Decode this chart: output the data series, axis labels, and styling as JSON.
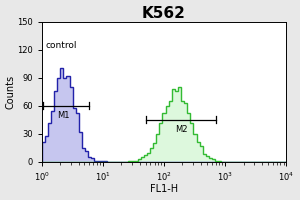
{
  "title": "K562",
  "xlabel": "FL1-H",
  "ylabel": "Counts",
  "ylim": [
    0,
    150
  ],
  "yticks": [
    0,
    30,
    60,
    90,
    120,
    150
  ],
  "xtick_labels": [
    "10$^0$",
    "10$^1$",
    "10$^2$",
    "10$^3$",
    "10$^4$"
  ],
  "control_label": "control",
  "m1_label": "M1",
  "m2_label": "M2",
  "bg_color": "#e8e8e8",
  "plot_bg_color": "#ffffff",
  "control_color": "#2222aa",
  "control_fill_color": "#4444cc",
  "sample_color": "#33bb33",
  "sample_fill_color": "#55dd55",
  "title_fontsize": 11,
  "axis_fontsize": 7,
  "tick_fontsize": 6,
  "control_peak_log": 0.35,
  "control_sigma": 0.18,
  "sample_peak_log": 2.2,
  "sample_sigma": 0.22
}
